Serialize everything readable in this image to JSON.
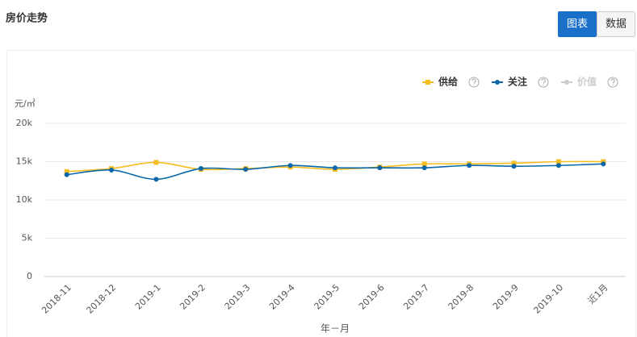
{
  "buttons": [
    "图表",
    "数据"
  ],
  "chart_data": {
    "type": "line",
    "title": "房价走势",
    "y_label": "元/㎡",
    "x_label": "年－月",
    "categories": [
      "2018-11",
      "2018-12",
      "2019-1",
      "2019-2",
      "2019-3",
      "2019-4",
      "2019-5",
      "2019-6",
      "2019-7",
      "2019-8",
      "2019-9",
      "2019-10",
      "近1月"
    ],
    "series": [
      {
        "name": "供给",
        "color": "#f5bd1f",
        "marker": "square",
        "values": [
          13700,
          14100,
          14900,
          14000,
          14100,
          14300,
          14000,
          14300,
          14700,
          14700,
          14800,
          15000,
          15000
        ]
      },
      {
        "name": "关注",
        "color": "#0a68aa",
        "marker": "circle",
        "values": [
          13300,
          13900,
          12700,
          14100,
          14000,
          14500,
          14200,
          14200,
          14200,
          14500,
          14400,
          14500,
          14700
        ]
      },
      {
        "name": "价值",
        "color": "#cccccc",
        "marker": "circle",
        "values": [
          null,
          null,
          null,
          null,
          null,
          null,
          null,
          null,
          null,
          null,
          null,
          null,
          null
        ]
      }
    ],
    "ylim": [
      0,
      20000
    ],
    "yticks": [
      {
        "value": 0,
        "label": "0"
      },
      {
        "value": 5000,
        "label": "5k"
      },
      {
        "value": 10000,
        "label": "10k"
      },
      {
        "value": 15000,
        "label": "15k"
      },
      {
        "value": 20000,
        "label": "20k"
      }
    ],
    "grid": true,
    "legend": "top-right",
    "smooth": true
  }
}
